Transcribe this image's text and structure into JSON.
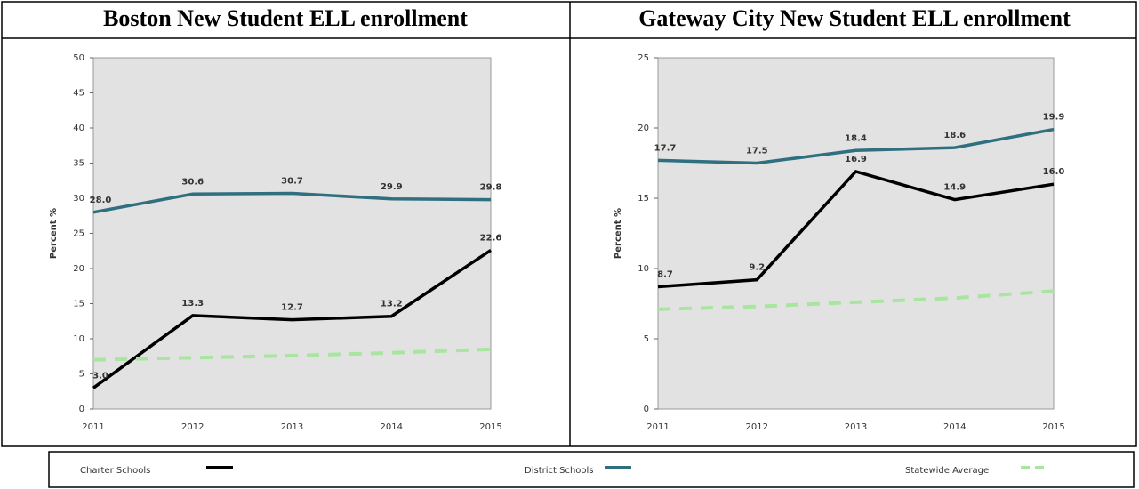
{
  "chart_data": [
    {
      "type": "line",
      "title": "Boston New Student ELL enrollment",
      "y_label": "Percent %",
      "categories": [
        "2011",
        "2012",
        "2013",
        "2014",
        "2015"
      ],
      "ylim": [
        0,
        50
      ],
      "yticks": [
        0,
        5,
        10,
        15,
        20,
        25,
        30,
        35,
        40,
        45,
        50
      ],
      "series": [
        {
          "name": "Charter Schools",
          "color": "#000000",
          "values": [
            3.0,
            13.3,
            12.7,
            13.2,
            22.6
          ],
          "value_labels": [
            "3.0",
            "13.3",
            "12.7",
            "13.2",
            "22.6"
          ]
        },
        {
          "name": "District Schools",
          "color": "#2f6f80",
          "values": [
            28.0,
            30.6,
            30.7,
            29.9,
            29.8
          ],
          "value_labels": [
            "28.0",
            "30.6",
            "30.7",
            "29.9",
            "29.8"
          ]
        },
        {
          "name": "Statewide Average",
          "color": "#a8e6a0",
          "dashed": true,
          "values": [
            7.0,
            7.3,
            7.6,
            8.0,
            8.5
          ]
        }
      ]
    },
    {
      "type": "line",
      "title": "Gateway City New Student ELL enrollment",
      "y_label": "Percent %",
      "categories": [
        "2011",
        "2012",
        "2013",
        "2014",
        "2015"
      ],
      "ylim": [
        0,
        25
      ],
      "yticks": [
        0,
        5,
        10,
        15,
        20,
        25
      ],
      "series": [
        {
          "name": "Charter Schools",
          "color": "#000000",
          "values": [
            8.7,
            9.2,
            16.9,
            14.9,
            16.0
          ],
          "value_labels": [
            "8.7",
            "9.2",
            "16.9",
            "14.9",
            "16.0"
          ]
        },
        {
          "name": "District Schools",
          "color": "#2f6f80",
          "values": [
            17.7,
            17.5,
            18.4,
            18.6,
            19.9
          ],
          "value_labels": [
            "17.7",
            "17.5",
            "18.4",
            "18.6",
            "19.9"
          ]
        },
        {
          "name": "Statewide Average",
          "color": "#a8e6a0",
          "dashed": true,
          "values": [
            7.1,
            7.3,
            7.6,
            7.9,
            8.4
          ]
        }
      ]
    }
  ]
}
